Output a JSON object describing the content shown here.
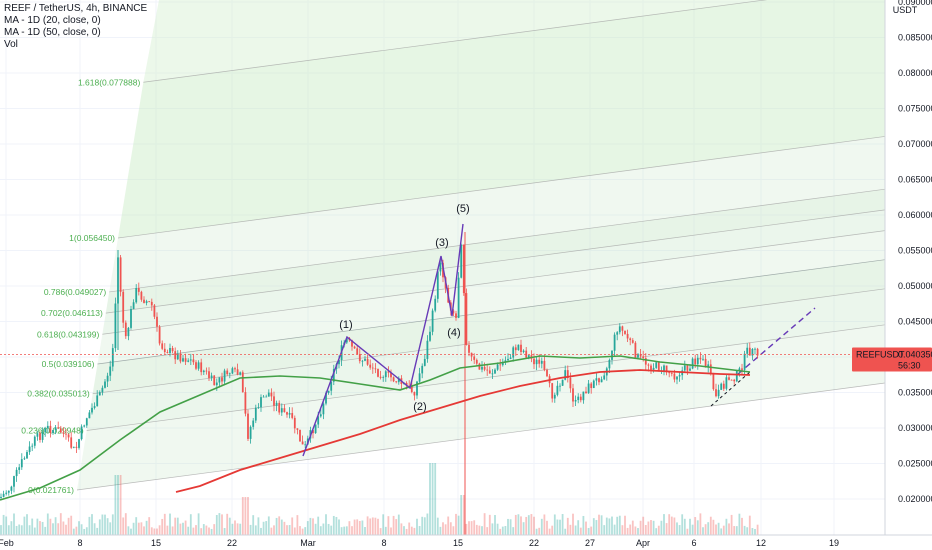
{
  "header": {
    "symbol_line": "REEF / TetherUS, 4h, BINANCE",
    "ma20_label": "MA - 1D (20, close, 0)",
    "ma50_label": "MA - 1D (50, close, 0)",
    "vol_label": "Vol"
  },
  "price_badge": {
    "symbol": "REEFUSDT",
    "price": "0.040350",
    "countdown": "56:30"
  },
  "axis_currency": "USDT",
  "colors": {
    "bull": "#26a69a",
    "bear": "#ef5350",
    "ma20": "#e53935",
    "ma50": "#43a047",
    "fib_fill": "#b9e6b5",
    "fib_label": "#4caf50",
    "wave": "#673ab7",
    "grid": "#f0f3fa"
  },
  "chart_data": {
    "type": "candlestick",
    "title": "REEF / TetherUS, 4h, BINANCE",
    "x_ticks": [
      "Feb",
      "8",
      "15",
      "22",
      "Mar",
      "8",
      "15",
      "22",
      "27",
      "Apr",
      "6",
      "12",
      "19"
    ],
    "y_ticks": [
      "0.090000",
      "0.085000",
      "0.080000",
      "0.075000",
      "0.070000",
      "0.065000",
      "0.060000",
      "0.055000",
      "0.050000",
      "0.045000",
      "0.040000",
      "0.035000",
      "0.030000",
      "0.025000",
      "0.020000"
    ],
    "y_range": [
      0.0185,
      0.091
    ],
    "last_price": 0.04035,
    "fib_channel": [
      {
        "label": "0(0.021761)",
        "level": 0
      },
      {
        "label": "0.236(0.029948)",
        "level": 0.236
      },
      {
        "label": "0.382(0.035013)",
        "level": 0.382
      },
      {
        "label": "0.5(0.039106)",
        "level": 0.5
      },
      {
        "label": "0.618(0.043199)",
        "level": 0.618
      },
      {
        "label": "0.702(0.046113)",
        "level": 0.702
      },
      {
        "label": "0.786(0.049027)",
        "level": 0.786
      },
      {
        "label": "1(0.056450)",
        "level": 1
      },
      {
        "label": "1.618(0.077888)",
        "level": 1.618
      }
    ],
    "elliott_waves": [
      {
        "label": "(1)",
        "price": 0.0435
      },
      {
        "label": "(2)",
        "price": 0.0347
      },
      {
        "label": "(3)",
        "price": 0.0545
      },
      {
        "label": "(4)",
        "price": 0.0455
      },
      {
        "label": "(5)",
        "price": 0.059
      }
    ],
    "series": [
      {
        "name": "MA - 1D (20, close, 0)",
        "color": "#e53935"
      },
      {
        "name": "MA - 1D (50, close, 0)",
        "color": "#43a047"
      },
      {
        "name": "Vol"
      }
    ]
  }
}
